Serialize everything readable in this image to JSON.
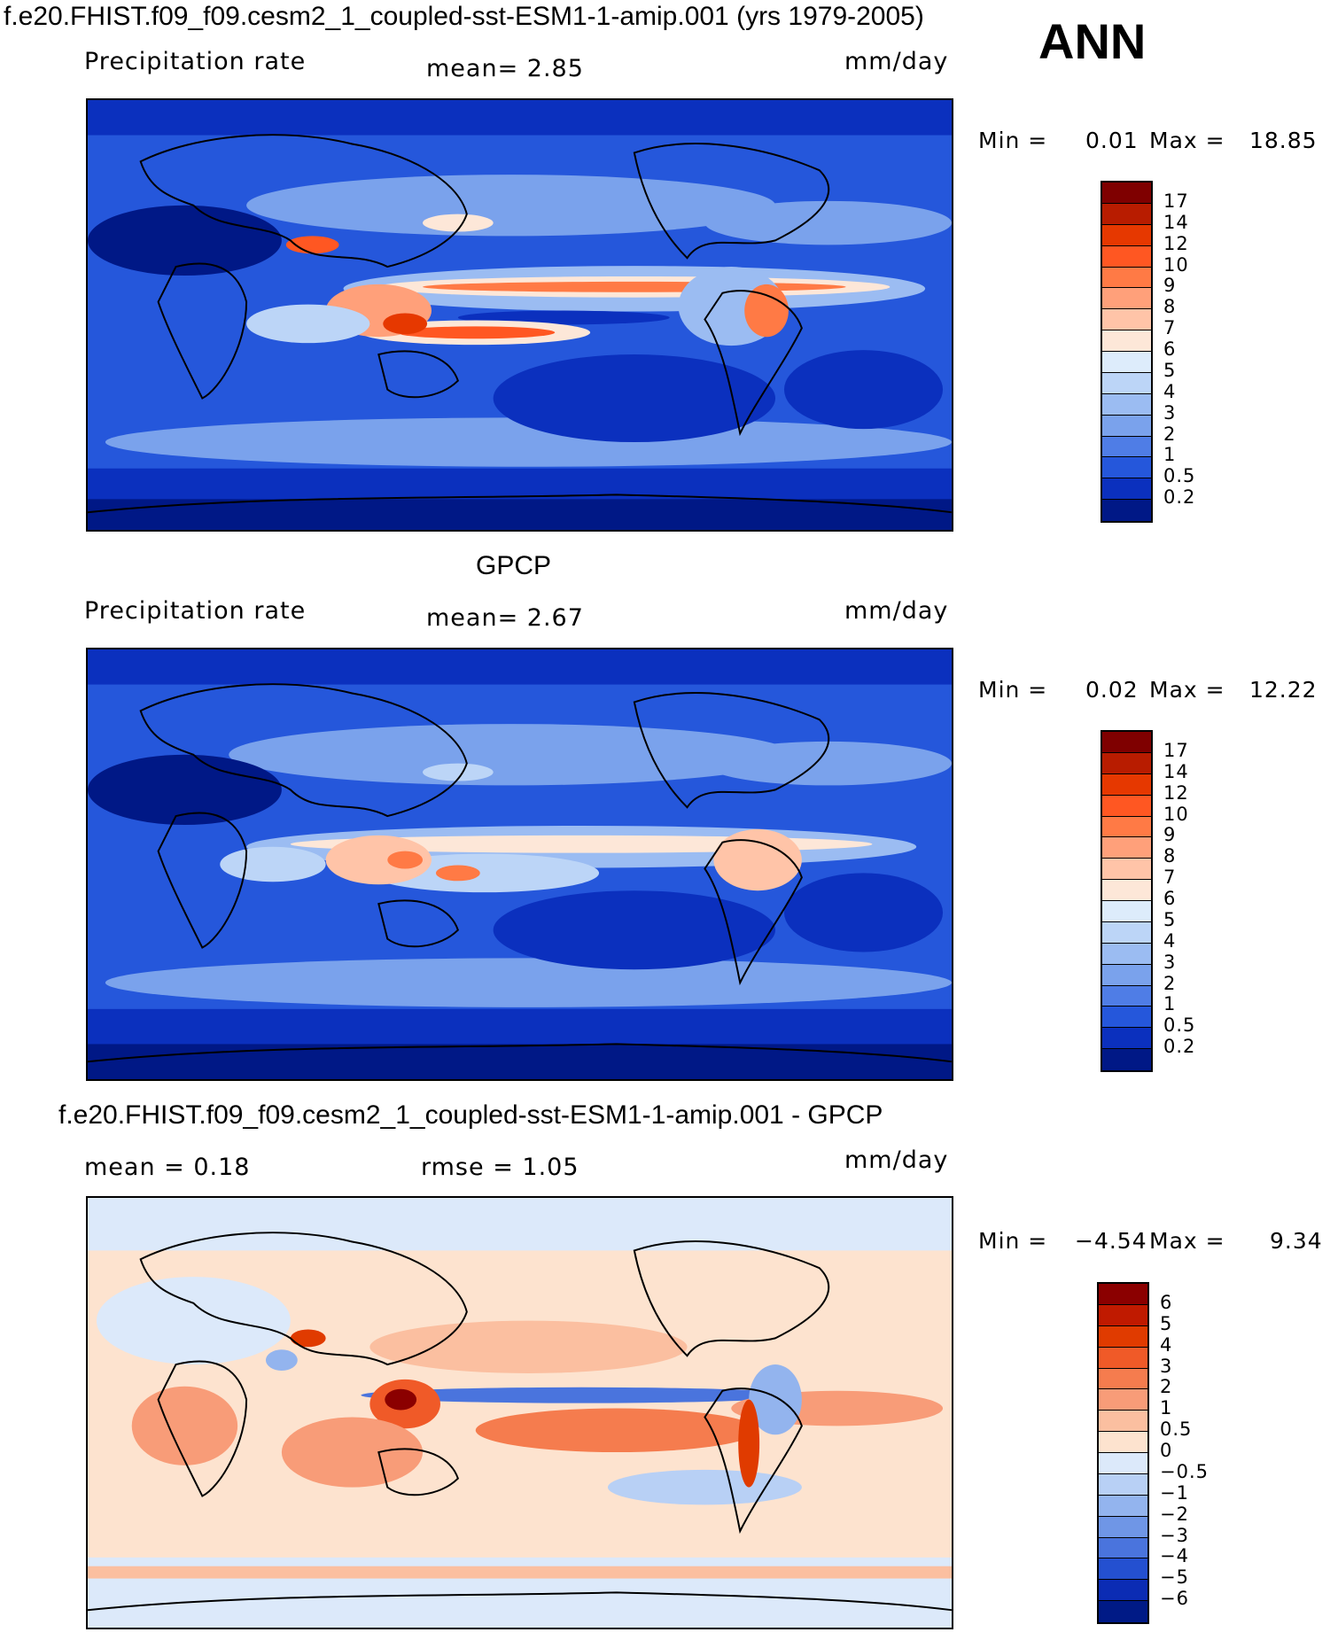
{
  "header": {
    "title": "f.e20.FHIST.f09_f09.cesm2_1_coupled-sst-ESM1-1-amip.001 (yrs 1979-2005)",
    "season": "ANN"
  },
  "panels": [
    {
      "id": "model",
      "subtitle": "",
      "variable": "Precipitation rate",
      "stat1": "mean=   2.85",
      "stat2": "",
      "units": "mm/day",
      "min_label": "Min  =",
      "min_value": "0.01",
      "max_label": "Max  =",
      "max_value": "18.85",
      "levels": [
        "17",
        "14",
        "12",
        "10",
        "9",
        "8",
        "7",
        "6",
        "5",
        "4",
        "3",
        "2",
        "1",
        "0.5",
        "0.2"
      ],
      "colors": [
        "#7f0000",
        "#b81c00",
        "#e63800",
        "#ff5722",
        "#ff7a45",
        "#ffa07a",
        "#ffc4a8",
        "#fde7d8",
        "#ddecfb",
        "#bcd5f7",
        "#9bbcf2",
        "#7aa2ec",
        "#4f7de6",
        "#2557db",
        "#0b30be",
        "#001886"
      ],
      "map_style": "abs"
    },
    {
      "id": "obs",
      "subtitle": "GPCP",
      "variable": "Precipitation rate",
      "stat1": "mean=   2.67",
      "stat2": "",
      "units": "mm/day",
      "min_label": "Min  =",
      "min_value": "0.02",
      "max_label": "Max  =",
      "max_value": "12.22",
      "levels": [
        "17",
        "14",
        "12",
        "10",
        "9",
        "8",
        "7",
        "6",
        "5",
        "4",
        "3",
        "2",
        "1",
        "0.5",
        "0.2"
      ],
      "colors": [
        "#7f0000",
        "#b81c00",
        "#e63800",
        "#ff5722",
        "#ff7a45",
        "#ffa07a",
        "#ffc4a8",
        "#fde7d8",
        "#ddecfb",
        "#bcd5f7",
        "#9bbcf2",
        "#7aa2ec",
        "#4f7de6",
        "#2557db",
        "#0b30be",
        "#001886"
      ],
      "map_style": "abs"
    },
    {
      "id": "diff",
      "subtitle": "f.e20.FHIST.f09_f09.cesm2_1_coupled-sst-ESM1-1-amip.001 - GPCP",
      "variable": "",
      "stat1": "mean =    0.18",
      "stat2": "rmse  =    1.05",
      "units": "mm/day",
      "min_label": "Min  =",
      "min_value": "−4.54",
      "max_label": "Max  =",
      "max_value": "9.34",
      "levels": [
        "6",
        "5",
        "4",
        "3",
        "2",
        "1",
        "0.5",
        "0",
        "−0.5",
        "−1",
        "−2",
        "−3",
        "−4",
        "−5",
        "−6"
      ],
      "colors": [
        "#8b0000",
        "#c01a00",
        "#e03b00",
        "#f05a28",
        "#f57c4e",
        "#f89c78",
        "#fbbfa0",
        "#fde3cf",
        "#dce9fa",
        "#b8d0f5",
        "#93b4ee",
        "#6f96e6",
        "#4a74dd",
        "#2450d0",
        "#0b2cb4",
        "#001a86"
      ],
      "map_style": "diff"
    }
  ]
}
